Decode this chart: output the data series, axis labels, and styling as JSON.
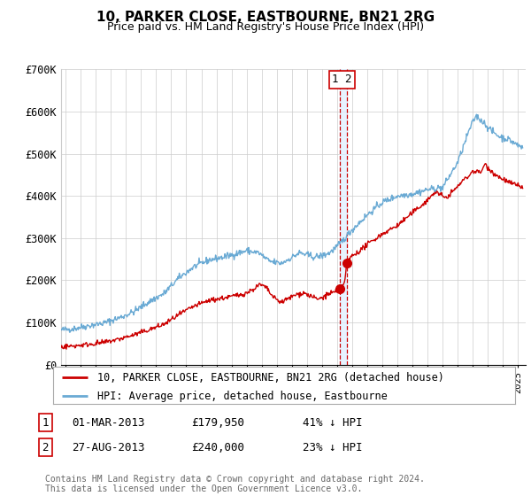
{
  "title": "10, PARKER CLOSE, EASTBOURNE, BN21 2RG",
  "subtitle": "Price paid vs. HM Land Registry's House Price Index (HPI)",
  "ylabel_ticks": [
    "£0",
    "£100K",
    "£200K",
    "£300K",
    "£400K",
    "£500K",
    "£600K",
    "£700K"
  ],
  "ylim": [
    0,
    700000
  ],
  "xlim_start": 1994.7,
  "xlim_end": 2025.5,
  "hpi_color": "#6aaad4",
  "price_color": "#cc0000",
  "sale1_date": 2013.17,
  "sale1_price": 179950,
  "sale2_date": 2013.65,
  "sale2_price": 240000,
  "legend_entries": [
    "10, PARKER CLOSE, EASTBOURNE, BN21 2RG (detached house)",
    "HPI: Average price, detached house, Eastbourne"
  ],
  "table_rows": [
    {
      "num": "1",
      "date": "01-MAR-2013",
      "price": "£179,950",
      "pct": "41% ↓ HPI"
    },
    {
      "num": "2",
      "date": "27-AUG-2013",
      "price": "£240,000",
      "pct": "23% ↓ HPI"
    }
  ],
  "footnote": "Contains HM Land Registry data © Crown copyright and database right 2024.\nThis data is licensed under the Open Government Licence v3.0.",
  "bg_color": "#ffffff",
  "grid_color": "#cccccc"
}
